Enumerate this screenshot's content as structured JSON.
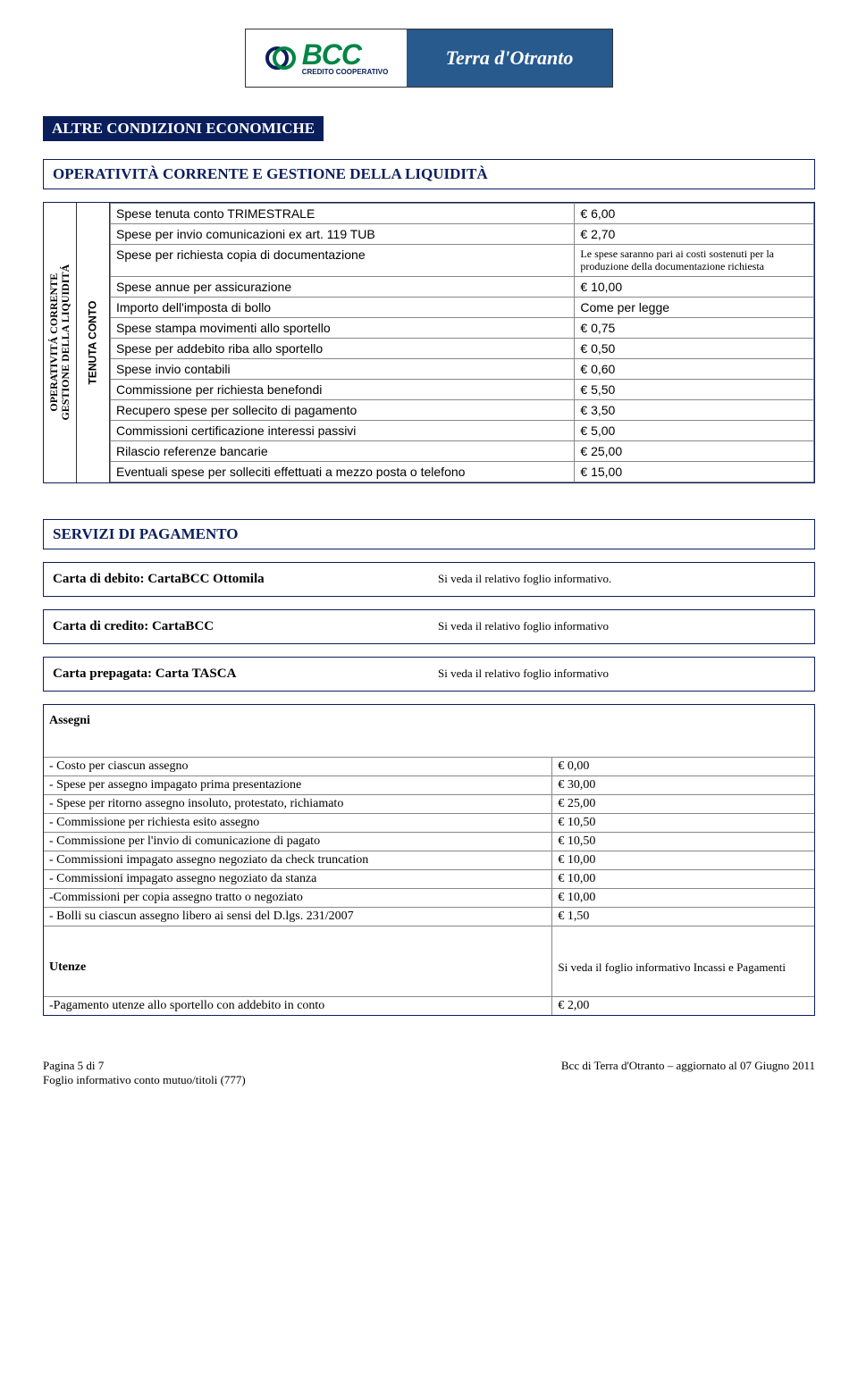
{
  "logo": {
    "bcc_text": "BCC",
    "bcc_sub": "CREDITO COOPERATIVO",
    "right_text": "Terra d'Otranto",
    "green": "#008546",
    "navy": "#0a1e5c",
    "blue_bg": "#285a8e"
  },
  "titles": {
    "main": "ALTRE CONDIZIONI ECONOMICHE",
    "section1": "OPERATIVITÀ CORRENTE E GESTIONE DELLA LIQUIDITÀ",
    "section2": "SERVIZI DI PAGAMENTO"
  },
  "side_labels": {
    "outer_line1": "OPERATIVITÁ CORRENTE",
    "outer_line2": "GESTIONE DELLA LIQUIDITÁ",
    "inner": "TENUTA CONTO"
  },
  "tenuta_rows": [
    {
      "label": "Spese tenuta conto TRIMESTRALE",
      "value": "€    6,00"
    },
    {
      "label": "Spese per invio comunicazioni ex art. 119 TUB",
      "value": "€    2,70"
    },
    {
      "label": "Spese per richiesta copia di documentazione",
      "value": "Le spese saranno pari ai costi sostenuti per la produzione della documentazione richiesta",
      "small": true
    },
    {
      "label": "Spese annue per assicurazione",
      "value": "€    10,00"
    },
    {
      "label": "Importo dell'imposta di bollo",
      "value": "Come per legge"
    },
    {
      "label": "Spese stampa movimenti allo sportello",
      "value": "€    0,75"
    },
    {
      "label": "Spese per addebito riba allo sportello",
      "value": "€    0,50"
    },
    {
      "label": "Spese invio contabili",
      "value": "€    0,60"
    },
    {
      "label": "Commissione per richiesta benefondi",
      "value": "€    5,50"
    },
    {
      "label": "Recupero spese per sollecito di pagamento",
      "value": "€    3,50"
    },
    {
      "label": "Commissioni certificazione interessi passivi",
      "value": "€    5,00"
    },
    {
      "label": "Rilascio referenze bancarie",
      "value": "€  25,00"
    },
    {
      "label": "Eventuali spese per solleciti effettuati a mezzo posta o telefono",
      "value": "€  15,00"
    }
  ],
  "carte": [
    {
      "label": "Carta di debito: CartaBCC Ottomila",
      "value": "Si veda il relativo foglio informativo."
    },
    {
      "label": "Carta di credito: CartaBCC",
      "value": "Si veda il relativo foglio informativo"
    },
    {
      "label": "Carta prepagata: Carta TASCA",
      "value": "Si veda il relativo foglio informativo"
    }
  ],
  "assegni": {
    "header": "Assegni",
    "rows": [
      {
        "label": "- Costo per ciascun assegno",
        "value": "€      0,00"
      },
      {
        "label": "- Spese per  assegno impagato prima presentazione",
        "value": "€    30,00"
      },
      {
        "label": "- Spese per ritorno assegno insoluto, protestato, richiamato",
        "value": "€    25,00"
      },
      {
        "label": "- Commissione per richiesta esito assegno",
        "value": "€    10,50"
      },
      {
        "label": "- Commissione per l'invio di comunicazione di pagato",
        "value": "€    10,50"
      },
      {
        "label": "- Commissioni impagato assegno negoziato da check truncation",
        "value": "€    10,00"
      },
      {
        "label": "- Commissioni impagato assegno negoziato da stanza",
        "value": "€    10,00"
      },
      {
        "label": "-Commissioni per copia assegno tratto o negoziato",
        "value": "€    10,00"
      },
      {
        "label": "- Bolli su ciascun assegno libero ai sensi del D.lgs. 231/2007",
        "value": "€      1,50"
      }
    ],
    "utenze_label": "Utenze",
    "utenze_value": "Si veda il foglio informativo Incassi e Pagamenti",
    "last_row_label": "-Pagamento utenze allo sportello con addebito in conto",
    "last_row_value": "€      2,00"
  },
  "footer": {
    "left_line1": "Pagina 5 di 7",
    "left_line2": "Foglio informativo conto mutuo/titoli (777)",
    "right": "Bcc di Terra d'Otranto – aggiornato al  07 Giugno 2011"
  }
}
